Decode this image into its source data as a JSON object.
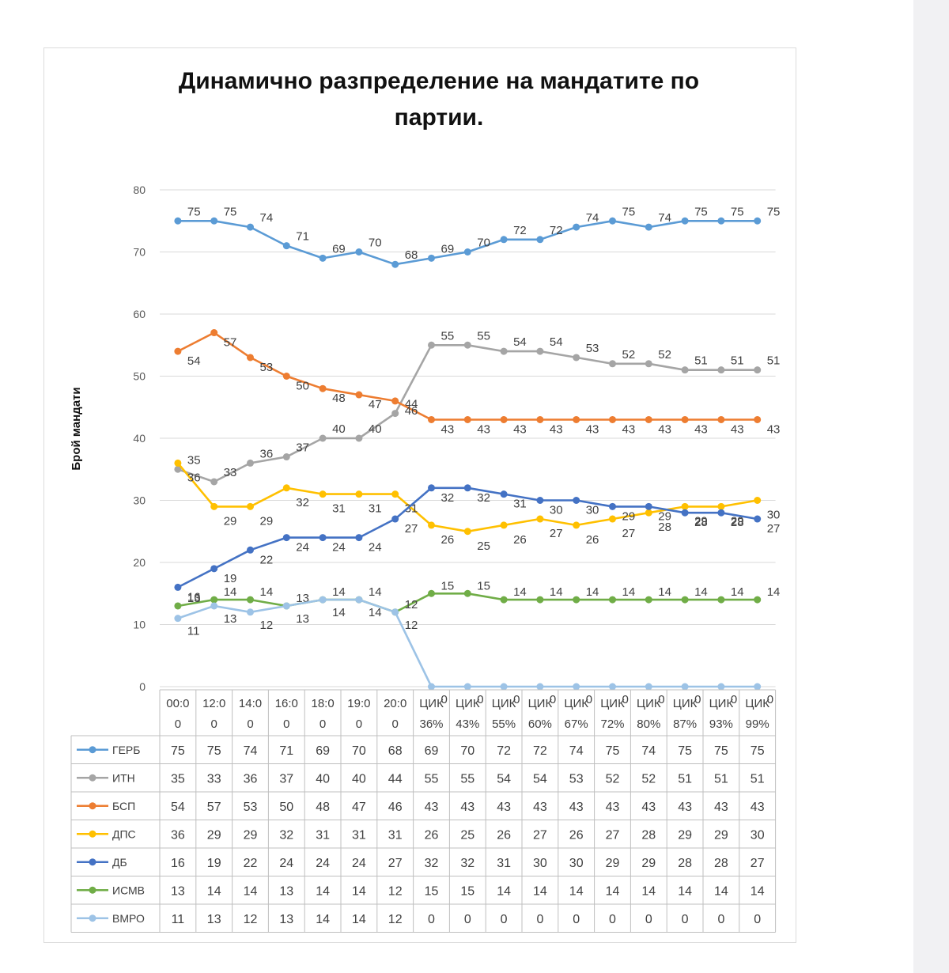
{
  "chart_data": {
    "type": "line",
    "title_line1": "Динамично разпределение на мандатите по",
    "title_line2": "партии.",
    "ylabel": "Брой мандати",
    "ylim": [
      0,
      80
    ],
    "yticks": [
      0,
      10,
      20,
      30,
      40,
      50,
      60,
      70,
      80
    ],
    "grid": true,
    "categories": [
      [
        "00:0",
        "0"
      ],
      [
        "12:0",
        "0"
      ],
      [
        "14:0",
        "0"
      ],
      [
        "16:0",
        "0"
      ],
      [
        "18:0",
        "0"
      ],
      [
        "19:0",
        "0"
      ],
      [
        "20:0",
        "0"
      ],
      [
        "ЦИК",
        "36%"
      ],
      [
        "ЦИК",
        "43%"
      ],
      [
        "ЦИК",
        "55%"
      ],
      [
        "ЦИК",
        "60%"
      ],
      [
        "ЦИК",
        "67%"
      ],
      [
        "ЦИК",
        "72%"
      ],
      [
        "ЦИК",
        "80%"
      ],
      [
        "ЦИК",
        "87%"
      ],
      [
        "ЦИК",
        "93%"
      ],
      [
        "ЦИК",
        "99%"
      ]
    ],
    "series": [
      {
        "name": "ГЕРБ",
        "color": "#5b9bd5",
        "values": [
          75,
          75,
          74,
          71,
          69,
          70,
          68,
          69,
          70,
          72,
          72,
          74,
          75,
          74,
          75,
          75,
          75
        ]
      },
      {
        "name": "ИТН",
        "color": "#a5a5a5",
        "values": [
          35,
          33,
          36,
          37,
          40,
          40,
          44,
          55,
          55,
          54,
          54,
          53,
          52,
          52,
          51,
          51,
          51
        ]
      },
      {
        "name": "БСП",
        "color": "#ed7d31",
        "values": [
          54,
          57,
          53,
          50,
          48,
          47,
          46,
          43,
          43,
          43,
          43,
          43,
          43,
          43,
          43,
          43,
          43
        ]
      },
      {
        "name": "ДПС",
        "color": "#ffc000",
        "values": [
          36,
          29,
          29,
          32,
          31,
          31,
          31,
          26,
          25,
          26,
          27,
          26,
          27,
          28,
          29,
          29,
          30
        ]
      },
      {
        "name": "ДБ",
        "color": "#4472c4",
        "values": [
          16,
          19,
          22,
          24,
          24,
          24,
          27,
          32,
          32,
          31,
          30,
          30,
          29,
          29,
          28,
          28,
          27
        ]
      },
      {
        "name": "ИСМВ",
        "color": "#70ad47",
        "values": [
          13,
          14,
          14,
          13,
          14,
          14,
          12,
          15,
          15,
          14,
          14,
          14,
          14,
          14,
          14,
          14,
          14
        ]
      },
      {
        "name": "ВМРО",
        "color": "#9dc3e6",
        "values": [
          11,
          13,
          12,
          13,
          14,
          14,
          12,
          0,
          0,
          0,
          0,
          0,
          0,
          0,
          0,
          0,
          0
        ]
      }
    ]
  }
}
